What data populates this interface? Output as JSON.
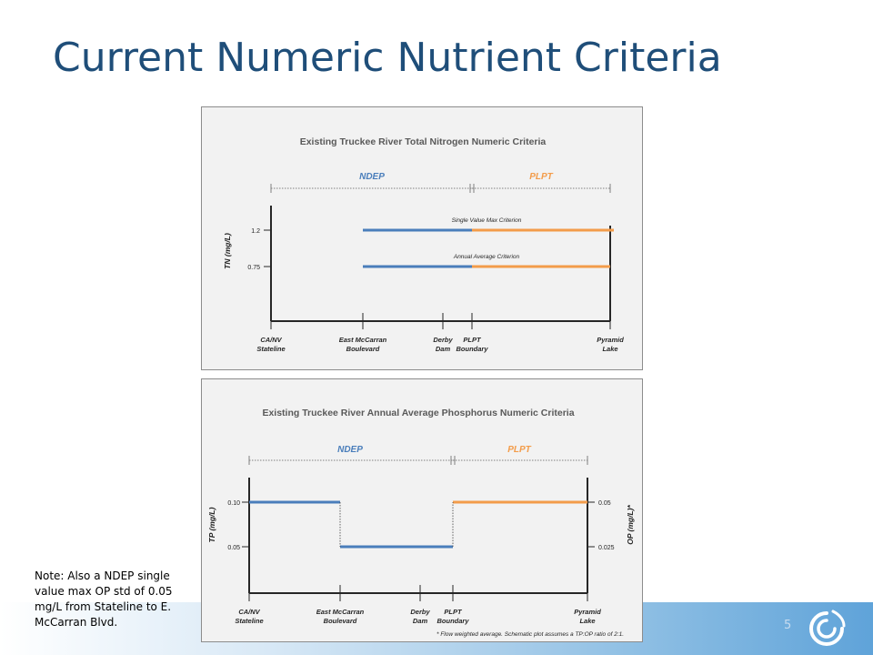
{
  "slide": {
    "title": "Current Numeric Nutrient Criteria",
    "note": "Note: Also a NDEP single value max OP std of 0.05 mg/L from Stateline to E. McCarran Blvd.",
    "page_number": "5",
    "colors": {
      "title": "#1f4e79",
      "ndep": "#4a7ebb",
      "plpt": "#f39c4a"
    }
  },
  "chart_data": [
    {
      "type": "line",
      "title": "Existing Truckee River Total Nitrogen Numeric Criteria",
      "ylabel": "TN (mg/L)",
      "ylim": [
        0,
        1.5
      ],
      "yticks": [
        "1.2",
        "0.75"
      ],
      "segments": [
        {
          "name": "NDEP",
          "from": "CA/NV Stateline",
          "to": "PLPT Boundary"
        },
        {
          "name": "PLPT",
          "from": "PLPT Boundary",
          "to": "Pyramid Lake"
        }
      ],
      "locations": [
        "CA/NV Stateline",
        "East McCarran Boulevard",
        "Derby Dam",
        "PLPT Boundary",
        "Pyramid Lake"
      ],
      "series": [
        {
          "name": "Single Value Max Criterion",
          "values": [
            {
              "from": "East McCarran Boulevard",
              "to": "PLPT Boundary",
              "value": 1.2,
              "agency": "NDEP"
            },
            {
              "from": "PLPT Boundary",
              "to": "Pyramid Lake",
              "value": 1.2,
              "agency": "PLPT"
            }
          ]
        },
        {
          "name": "Annual Average Criterion",
          "values": [
            {
              "from": "East McCarran Boulevard",
              "to": "PLPT Boundary",
              "value": 0.75,
              "agency": "NDEP"
            },
            {
              "from": "PLPT Boundary",
              "to": "Pyramid Lake",
              "value": 0.75,
              "agency": "PLPT"
            }
          ]
        }
      ]
    },
    {
      "type": "line",
      "title": "Existing Truckee River Annual Average Phosphorus Numeric Criteria",
      "ylabel": "TP (mg/L)",
      "y2label": "OP (mg/L)*",
      "ylim": [
        0,
        0.15
      ],
      "yticks": [
        "0.10",
        "0.05"
      ],
      "y2ticks": [
        "0.05",
        "0.025"
      ],
      "segments": [
        {
          "name": "NDEP",
          "from": "CA/NV Stateline",
          "to": "PLPT Boundary"
        },
        {
          "name": "PLPT",
          "from": "PLPT Boundary",
          "to": "Pyramid Lake"
        }
      ],
      "locations": [
        "CA/NV Stateline",
        "East McCarran Boulevard",
        "Derby Dam",
        "PLPT Boundary",
        "Pyramid Lake"
      ],
      "series": [
        {
          "name": "TP",
          "values": [
            {
              "from": "CA/NV Stateline",
              "to": "East McCarran Boulevard",
              "value": 0.1,
              "agency": "NDEP"
            },
            {
              "from": "East McCarran Boulevard",
              "to": "PLPT Boundary",
              "value": 0.05,
              "agency": "NDEP"
            },
            {
              "from": "PLPT Boundary",
              "to": "Pyramid Lake",
              "value": 0.1,
              "agency": "PLPT"
            }
          ]
        }
      ],
      "footnote": "* Flow weighted average. Schematic plot assumes a TP:OP ratio of 2:1."
    }
  ]
}
